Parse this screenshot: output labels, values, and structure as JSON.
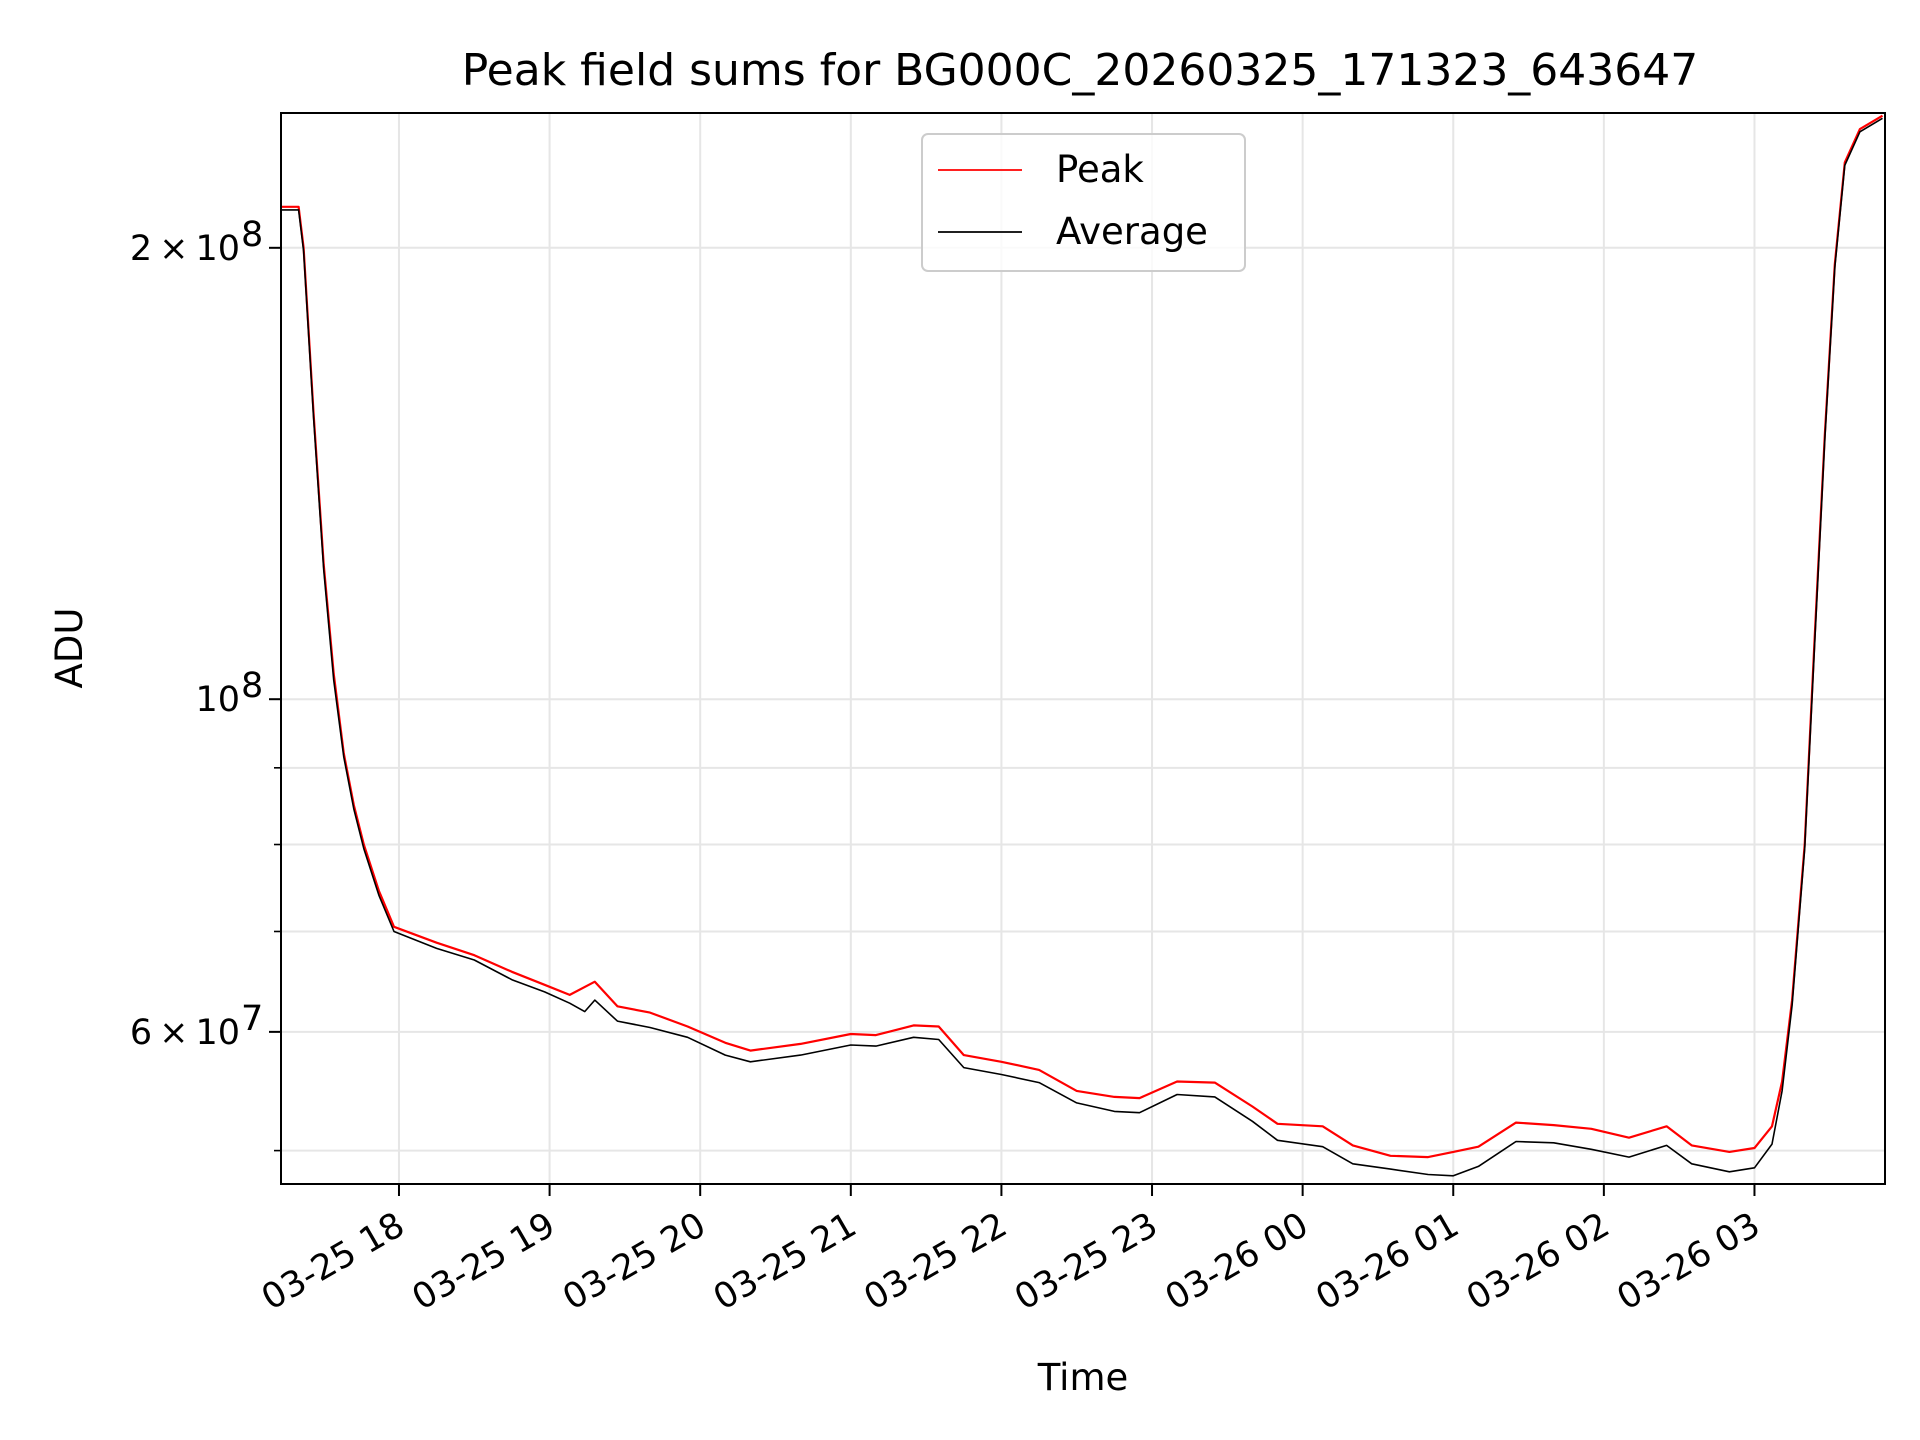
{
  "chart_data": {
    "type": "line",
    "title": "Peak field sums for BG000C_20260325_171323_643647",
    "xlabel": "Time",
    "ylabel": "ADU",
    "y_scale": "log",
    "ylim": [
      47500000,
      246000000
    ],
    "xlim": [
      "2026-03-25 17:13",
      "2026-03-26 03:52"
    ],
    "grid": true,
    "legend_position": "upper center",
    "x_ticks": [
      {
        "t": "2026-03-25 18:00",
        "label": "03-25 18"
      },
      {
        "t": "2026-03-25 19:00",
        "label": "03-25 19"
      },
      {
        "t": "2026-03-25 20:00",
        "label": "03-25 20"
      },
      {
        "t": "2026-03-25 21:00",
        "label": "03-25 21"
      },
      {
        "t": "2026-03-25 22:00",
        "label": "03-25 22"
      },
      {
        "t": "2026-03-25 23:00",
        "label": "03-25 23"
      },
      {
        "t": "2026-03-26 00:00",
        "label": "03-26 00"
      },
      {
        "t": "2026-03-26 01:00",
        "label": "03-26 01"
      },
      {
        "t": "2026-03-26 02:00",
        "label": "03-26 02"
      },
      {
        "t": "2026-03-26 03:00",
        "label": "03-26 03"
      }
    ],
    "y_major_ticks": [
      {
        "v": 60000000,
        "mant": "6",
        "exp": "7"
      },
      {
        "v": 100000000,
        "mant": "",
        "exp": "8"
      },
      {
        "v": 200000000,
        "mant": "2",
        "exp": "8"
      }
    ],
    "y_minor_ticks": [
      50000000,
      70000000,
      80000000,
      90000000
    ],
    "series": [
      {
        "name": "Peak",
        "color": "#ff0000",
        "points": [
          [
            "2026-03-25 17:13",
            213000000
          ],
          [
            "2026-03-25 17:20",
            213000000
          ],
          [
            "2026-03-25 17:22",
            200000000
          ],
          [
            "2026-03-25 17:26",
            155000000
          ],
          [
            "2026-03-25 17:30",
            123000000
          ],
          [
            "2026-03-25 17:34",
            104000000
          ],
          [
            "2026-03-25 17:38",
            92000000
          ],
          [
            "2026-03-25 17:42",
            85000000
          ],
          [
            "2026-03-25 17:46",
            80000000
          ],
          [
            "2026-03-25 17:52",
            74500000
          ],
          [
            "2026-03-25 17:58",
            70500000
          ],
          [
            "2026-03-25 18:15",
            68800000
          ],
          [
            "2026-03-25 18:30",
            67500000
          ],
          [
            "2026-03-25 18:45",
            65800000
          ],
          [
            "2026-03-25 18:58",
            64500000
          ],
          [
            "2026-03-25 19:08",
            63500000
          ],
          [
            "2026-03-25 19:18",
            64800000
          ],
          [
            "2026-03-25 19:27",
            62400000
          ],
          [
            "2026-03-25 19:40",
            61800000
          ],
          [
            "2026-03-25 19:55",
            60500000
          ],
          [
            "2026-03-25 20:10",
            59000000
          ],
          [
            "2026-03-25 20:20",
            58300000
          ],
          [
            "2026-03-25 20:40",
            58900000
          ],
          [
            "2026-03-25 21:00",
            59800000
          ],
          [
            "2026-03-25 21:10",
            59700000
          ],
          [
            "2026-03-25 21:25",
            60600000
          ],
          [
            "2026-03-25 21:35",
            60500000
          ],
          [
            "2026-03-25 21:45",
            57900000
          ],
          [
            "2026-03-25 22:00",
            57300000
          ],
          [
            "2026-03-25 22:15",
            56600000
          ],
          [
            "2026-03-25 22:30",
            54800000
          ],
          [
            "2026-03-25 22:45",
            54300000
          ],
          [
            "2026-03-25 22:55",
            54200000
          ],
          [
            "2026-03-25 23:10",
            55600000
          ],
          [
            "2026-03-25 23:25",
            55500000
          ],
          [
            "2026-03-25 23:40",
            53500000
          ],
          [
            "2026-03-25 23:50",
            52100000
          ],
          [
            "2026-03-26 00:08",
            51900000
          ],
          [
            "2026-03-26 00:20",
            50400000
          ],
          [
            "2026-03-26 00:35",
            49600000
          ],
          [
            "2026-03-26 00:50",
            49500000
          ],
          [
            "2026-03-26 01:00",
            49900000
          ],
          [
            "2026-03-26 01:10",
            50300000
          ],
          [
            "2026-03-26 01:25",
            52200000
          ],
          [
            "2026-03-26 01:40",
            52000000
          ],
          [
            "2026-03-26 01:55",
            51700000
          ],
          [
            "2026-03-26 02:10",
            51000000
          ],
          [
            "2026-03-26 02:25",
            51900000
          ],
          [
            "2026-03-26 02:35",
            50400000
          ],
          [
            "2026-03-26 02:50",
            49900000
          ],
          [
            "2026-03-26 03:00",
            50200000
          ],
          [
            "2026-03-26 03:07",
            51900000
          ],
          [
            "2026-03-26 03:11",
            55600000
          ],
          [
            "2026-03-26 03:15",
            63000000
          ],
          [
            "2026-03-26 03:20",
            80000000
          ],
          [
            "2026-03-26 03:24",
            110000000
          ],
          [
            "2026-03-26 03:28",
            150000000
          ],
          [
            "2026-03-26 03:32",
            195000000
          ],
          [
            "2026-03-26 03:36",
            228000000
          ],
          [
            "2026-03-26 03:42",
            240000000
          ],
          [
            "2026-03-26 03:51",
            245000000
          ]
        ]
      },
      {
        "name": "Average",
        "color": "#000000",
        "points": [
          [
            "2026-03-25 17:13",
            212000000
          ],
          [
            "2026-03-25 17:20",
            212000000
          ],
          [
            "2026-03-25 17:22",
            199000000
          ],
          [
            "2026-03-25 17:26",
            154000000
          ],
          [
            "2026-03-25 17:30",
            122000000
          ],
          [
            "2026-03-25 17:34",
            103000000
          ],
          [
            "2026-03-25 17:38",
            91500000
          ],
          [
            "2026-03-25 17:42",
            84500000
          ],
          [
            "2026-03-25 17:46",
            79500000
          ],
          [
            "2026-03-25 17:52",
            74000000
          ],
          [
            "2026-03-25 17:58",
            70000000
          ],
          [
            "2026-03-25 18:15",
            68200000
          ],
          [
            "2026-03-25 18:30",
            67000000
          ],
          [
            "2026-03-25 18:45",
            65000000
          ],
          [
            "2026-03-25 18:58",
            63800000
          ],
          [
            "2026-03-25 19:08",
            62700000
          ],
          [
            "2026-03-25 19:14",
            61900000
          ],
          [
            "2026-03-25 19:18",
            63000000
          ],
          [
            "2026-03-25 19:27",
            61000000
          ],
          [
            "2026-03-25 19:40",
            60400000
          ],
          [
            "2026-03-25 19:55",
            59500000
          ],
          [
            "2026-03-25 20:10",
            57900000
          ],
          [
            "2026-03-25 20:20",
            57300000
          ],
          [
            "2026-03-25 20:40",
            57900000
          ],
          [
            "2026-03-25 21:00",
            58800000
          ],
          [
            "2026-03-25 21:10",
            58700000
          ],
          [
            "2026-03-25 21:25",
            59500000
          ],
          [
            "2026-03-25 21:35",
            59300000
          ],
          [
            "2026-03-25 21:45",
            56800000
          ],
          [
            "2026-03-25 22:00",
            56200000
          ],
          [
            "2026-03-25 22:15",
            55500000
          ],
          [
            "2026-03-25 22:30",
            53800000
          ],
          [
            "2026-03-25 22:45",
            53100000
          ],
          [
            "2026-03-25 22:55",
            53000000
          ],
          [
            "2026-03-25 23:10",
            54500000
          ],
          [
            "2026-03-25 23:25",
            54300000
          ],
          [
            "2026-03-25 23:40",
            52300000
          ],
          [
            "2026-03-25 23:50",
            50800000
          ],
          [
            "2026-03-26 00:08",
            50300000
          ],
          [
            "2026-03-26 00:20",
            49000000
          ],
          [
            "2026-03-26 00:35",
            48600000
          ],
          [
            "2026-03-26 00:50",
            48200000
          ],
          [
            "2026-03-26 01:00",
            48100000
          ],
          [
            "2026-03-26 01:10",
            48800000
          ],
          [
            "2026-03-26 01:25",
            50700000
          ],
          [
            "2026-03-26 01:40",
            50600000
          ],
          [
            "2026-03-26 01:55",
            50100000
          ],
          [
            "2026-03-26 02:10",
            49500000
          ],
          [
            "2026-03-26 02:25",
            50400000
          ],
          [
            "2026-03-26 02:35",
            49000000
          ],
          [
            "2026-03-26 02:50",
            48400000
          ],
          [
            "2026-03-26 03:00",
            48700000
          ],
          [
            "2026-03-26 03:07",
            50500000
          ],
          [
            "2026-03-26 03:11",
            54800000
          ],
          [
            "2026-03-26 03:15",
            62500000
          ],
          [
            "2026-03-26 03:20",
            79500000
          ],
          [
            "2026-03-26 03:24",
            109000000
          ],
          [
            "2026-03-26 03:28",
            149000000
          ],
          [
            "2026-03-26 03:32",
            194000000
          ],
          [
            "2026-03-26 03:36",
            227000000
          ],
          [
            "2026-03-26 03:42",
            239000000
          ],
          [
            "2026-03-26 03:51",
            244000000
          ]
        ]
      }
    ]
  }
}
